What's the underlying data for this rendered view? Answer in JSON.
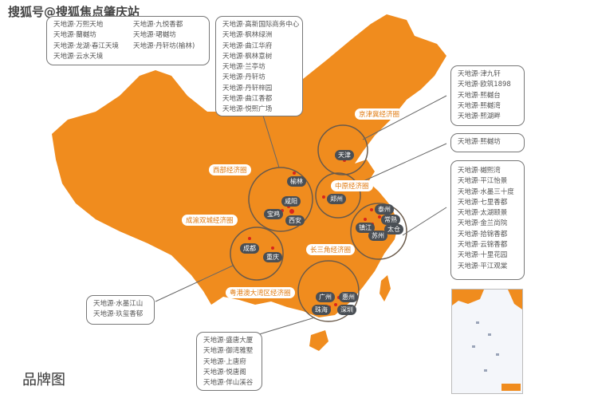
{
  "watermark": "搜狐号@搜狐焦点肇庆站",
  "footer_title": "品牌图",
  "colors": {
    "land": "#f08c1e",
    "circle": "#6a5a4a",
    "label_bg": "#ffffff",
    "city_bg": "#4a4f55",
    "city_dot": "#d8261c"
  },
  "boxes": {
    "top_left": [
      "天地源·万熙天地",
      "天地源·九悦香都",
      "天地源·蘭樾坊",
      "天地源·珺樾坊",
      "天地源·龙湖·春江天境",
      "天地源·丹轩坊(榆林)",
      "天地源·云水天境"
    ],
    "xian": [
      "天地源·高新国际商务中心",
      "天地源·枫林绿洲",
      "天地源·曲江华府",
      "天地源·枫林意树",
      "天地源·兰亭坊",
      "天地源·丹轩坊",
      "天地源·丹轩梓园",
      "天地源·曲江香都",
      "天地源·悦熙广场"
    ],
    "tianjin": [
      "天地源·津九轩",
      "天地源·欧筑1898",
      "天地源·熙樾台",
      "天地源·熙樾湾",
      "天地源·熙湖畔"
    ],
    "zhengzhou": [
      "天地源·熙樾坊"
    ],
    "yangtze": [
      "天地源·樾熙湾",
      "天地源·平江怡景",
      "天地源·水墨三十度",
      "天地源·七里香都",
      "天地源·太湖颐景",
      "天地源·金兰尚院",
      "天地源·拾锦香都",
      "天地源·云锦香都",
      "天地源·十里花园",
      "天地源·平江观棠"
    ],
    "chongqing": [
      "天地源·水墨江山",
      "天地源·玖玺香郁"
    ],
    "gba": [
      "天地源·盛唐大厦",
      "天地源·御湾雅墅",
      "天地源·上唐府",
      "天地源·悦唐阁",
      "天地源·伴山溪谷"
    ]
  },
  "regions": {
    "jjj": "京津冀经济圈",
    "west": "西部经济圈",
    "central": "中原经济圈",
    "chengyu": "成渝双城经济圈",
    "yrd": "长三角经济圈",
    "gba": "粤港澳大湾区经济圈"
  },
  "cities": {
    "tianjin": "天津",
    "yulin": "榆林",
    "zhengzhou": "郑州",
    "xianyang": "咸阳",
    "baoji": "宝鸡",
    "xian": "西安",
    "taizhou": "泰州",
    "changshu": "常熟",
    "zhenjiang": "镇江",
    "taicang": "太仓",
    "suzhou": "苏州",
    "chengdu": "成都",
    "chongqing": "重庆",
    "guangzhou": "广州",
    "huizhou": "惠州",
    "zhuhai": "珠海",
    "shenzhen": "深圳"
  }
}
